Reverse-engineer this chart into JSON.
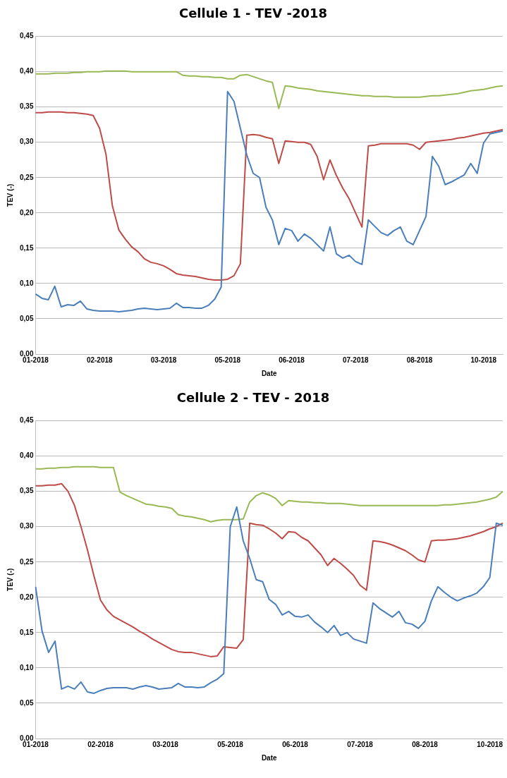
{
  "chart_data": [
    {
      "type": "line",
      "title": "Cellule 1 - TEV -2018",
      "xlabel": "Date",
      "ylabel": "TEV (-)",
      "categories": [
        "01-2018",
        null,
        null,
        null,
        null,
        null,
        null,
        null,
        null,
        null,
        "02-2018",
        null,
        null,
        null,
        null,
        null,
        null,
        null,
        null,
        null,
        "03-2018",
        null,
        null,
        null,
        null,
        null,
        null,
        null,
        null,
        null,
        "05-2018",
        null,
        null,
        null,
        null,
        null,
        null,
        null,
        null,
        null,
        "06-2018",
        null,
        null,
        null,
        null,
        null,
        null,
        null,
        null,
        null,
        "07-2018",
        null,
        null,
        null,
        null,
        null,
        null,
        null,
        null,
        null,
        "08-2018",
        null,
        null,
        null,
        null,
        null,
        null,
        null,
        null,
        null,
        "10-2018",
        null,
        null,
        null
      ],
      "ylim": [
        0,
        0.45
      ],
      "yticks": [
        {
          "value": 0,
          "label": "0,00"
        },
        {
          "value": 0.05,
          "label": "0,05"
        },
        {
          "value": 0.1,
          "label": "0,10"
        },
        {
          "value": 0.15,
          "label": "0,15"
        },
        {
          "value": 0.2,
          "label": "0,20"
        },
        {
          "value": 0.25,
          "label": "0,25"
        },
        {
          "value": 0.3,
          "label": "0,30"
        },
        {
          "value": 0.35,
          "label": "0,35"
        },
        {
          "value": 0.4,
          "label": "0,40"
        },
        {
          "value": 0.45,
          "label": "0,45"
        }
      ],
      "grid": "y",
      "legend": false,
      "marker": "none",
      "line_style": "solid",
      "series": [
        {
          "color": "#4a7ebb",
          "values": [
            0.085,
            0.079,
            0.077,
            0.096,
            0.067,
            0.07,
            0.069,
            0.075,
            0.064,
            0.062,
            0.061,
            0.061,
            0.061,
            0.06,
            0.061,
            0.062,
            0.064,
            0.065,
            0.064,
            0.063,
            0.064,
            0.065,
            0.072,
            0.066,
            0.066,
            0.065,
            0.065,
            0.069,
            0.078,
            0.095,
            0.372,
            0.358,
            0.32,
            0.282,
            0.256,
            0.25,
            0.208,
            0.19,
            0.155,
            0.178,
            0.175,
            0.16,
            0.17,
            0.164,
            0.155,
            0.146,
            0.18,
            0.142,
            0.136,
            0.14,
            0.131,
            0.127,
            0.19,
            0.181,
            0.172,
            0.168,
            0.175,
            0.18,
            0.16,
            0.155,
            0.175,
            0.195,
            0.28,
            0.266,
            0.24,
            0.244,
            0.249,
            0.254,
            0.27,
            0.256,
            0.299,
            0.312,
            0.314,
            0.316
          ]
        },
        {
          "color": "#be4b48",
          "values": [
            0.342,
            0.342,
            0.343,
            0.343,
            0.343,
            0.342,
            0.342,
            0.341,
            0.34,
            0.338,
            0.32,
            0.283,
            0.21,
            0.176,
            0.163,
            0.152,
            0.145,
            0.135,
            0.13,
            0.128,
            0.125,
            0.12,
            0.114,
            0.112,
            0.111,
            0.11,
            0.108,
            0.106,
            0.105,
            0.105,
            0.106,
            0.111,
            0.128,
            0.31,
            0.311,
            0.31,
            0.307,
            0.305,
            0.27,
            0.302,
            0.301,
            0.3,
            0.3,
            0.297,
            0.28,
            0.247,
            0.275,
            0.253,
            0.235,
            0.22,
            0.2,
            0.18,
            0.295,
            0.296,
            0.298,
            0.298,
            0.298,
            0.298,
            0.298,
            0.296,
            0.29,
            0.3,
            0.301,
            0.302,
            0.303,
            0.304,
            0.306,
            0.307,
            0.309,
            0.311,
            0.313,
            0.314,
            0.316,
            0.318
          ]
        },
        {
          "color": "#98b954",
          "values": [
            0.397,
            0.397,
            0.397,
            0.398,
            0.398,
            0.398,
            0.399,
            0.399,
            0.4,
            0.4,
            0.4,
            0.401,
            0.401,
            0.401,
            0.401,
            0.4,
            0.4,
            0.4,
            0.4,
            0.4,
            0.4,
            0.4,
            0.4,
            0.395,
            0.394,
            0.394,
            0.393,
            0.393,
            0.392,
            0.392,
            0.39,
            0.39,
            0.395,
            0.396,
            0.393,
            0.39,
            0.387,
            0.385,
            0.348,
            0.38,
            0.379,
            0.377,
            0.376,
            0.375,
            0.373,
            0.372,
            0.371,
            0.37,
            0.369,
            0.368,
            0.367,
            0.366,
            0.366,
            0.365,
            0.365,
            0.365,
            0.364,
            0.364,
            0.364,
            0.364,
            0.364,
            0.365,
            0.366,
            0.366,
            0.367,
            0.368,
            0.369,
            0.371,
            0.373,
            0.374,
            0.375,
            0.377,
            0.379,
            0.38
          ]
        }
      ]
    },
    {
      "type": "line",
      "title": "Cellule 2 - TEV - 2018",
      "xlabel": "Date",
      "ylabel": "TEV (-)",
      "categories": [
        "01-2018",
        null,
        null,
        null,
        null,
        null,
        null,
        null,
        null,
        null,
        "02-2018",
        null,
        null,
        null,
        null,
        null,
        null,
        null,
        null,
        null,
        "03-2018",
        null,
        null,
        null,
        null,
        null,
        null,
        null,
        null,
        null,
        "05-2018",
        null,
        null,
        null,
        null,
        null,
        null,
        null,
        null,
        null,
        "06-2018",
        null,
        null,
        null,
        null,
        null,
        null,
        null,
        null,
        null,
        "07-2018",
        null,
        null,
        null,
        null,
        null,
        null,
        null,
        null,
        null,
        "08-2018",
        null,
        null,
        null,
        null,
        null,
        null,
        null,
        null,
        null,
        "10-2018",
        null,
        null
      ],
      "ylim": [
        0,
        0.45
      ],
      "yticks": [
        {
          "value": 0,
          "label": "0,00"
        },
        {
          "value": 0.05,
          "label": "0,05"
        },
        {
          "value": 0.1,
          "label": "0,10"
        },
        {
          "value": 0.15,
          "label": "0,15"
        },
        {
          "value": 0.2,
          "label": "0,20"
        },
        {
          "value": 0.25,
          "label": "0,25"
        },
        {
          "value": 0.3,
          "label": "0,30"
        },
        {
          "value": 0.35,
          "label": "0,35"
        },
        {
          "value": 0.4,
          "label": "0,40"
        },
        {
          "value": 0.45,
          "label": "0,45"
        }
      ],
      "grid": "y",
      "legend": false,
      "marker": "none",
      "line_style": "solid",
      "series": [
        {
          "color": "#4a7ebb",
          "values": [
            0.215,
            0.152,
            0.122,
            0.138,
            0.07,
            0.074,
            0.07,
            0.08,
            0.066,
            0.064,
            0.068,
            0.071,
            0.072,
            0.072,
            0.072,
            0.07,
            0.073,
            0.075,
            0.073,
            0.07,
            0.071,
            0.072,
            0.078,
            0.073,
            0.073,
            0.072,
            0.073,
            0.079,
            0.084,
            0.092,
            0.3,
            0.328,
            0.28,
            0.255,
            0.225,
            0.222,
            0.197,
            0.19,
            0.175,
            0.18,
            0.173,
            0.172,
            0.175,
            0.165,
            0.158,
            0.15,
            0.16,
            0.146,
            0.15,
            0.141,
            0.138,
            0.135,
            0.192,
            0.184,
            0.178,
            0.172,
            0.18,
            0.164,
            0.162,
            0.156,
            0.166,
            0.195,
            0.215,
            0.207,
            0.2,
            0.195,
            0.199,
            0.202,
            0.206,
            0.215,
            0.228,
            0.305,
            0.302
          ]
        },
        {
          "color": "#be4b48",
          "values": [
            0.358,
            0.358,
            0.359,
            0.359,
            0.361,
            0.35,
            0.33,
            0.3,
            0.267,
            0.23,
            0.196,
            0.182,
            0.173,
            0.168,
            0.163,
            0.158,
            0.152,
            0.147,
            0.141,
            0.136,
            0.131,
            0.126,
            0.123,
            0.122,
            0.122,
            0.12,
            0.118,
            0.116,
            0.117,
            0.13,
            0.129,
            0.128,
            0.14,
            0.305,
            0.303,
            0.302,
            0.297,
            0.291,
            0.283,
            0.293,
            0.292,
            0.285,
            0.28,
            0.27,
            0.26,
            0.245,
            0.255,
            0.248,
            0.24,
            0.231,
            0.217,
            0.21,
            0.28,
            0.279,
            0.277,
            0.274,
            0.27,
            0.266,
            0.26,
            0.253,
            0.25,
            0.28,
            0.281,
            0.281,
            0.282,
            0.283,
            0.285,
            0.287,
            0.29,
            0.293,
            0.297,
            0.3,
            0.305
          ]
        },
        {
          "color": "#98b954",
          "values": [
            0.382,
            0.382,
            0.383,
            0.383,
            0.384,
            0.384,
            0.385,
            0.385,
            0.385,
            0.385,
            0.384,
            0.384,
            0.384,
            0.349,
            0.344,
            0.34,
            0.336,
            0.332,
            0.331,
            0.329,
            0.328,
            0.326,
            0.317,
            0.315,
            0.314,
            0.312,
            0.31,
            0.307,
            0.309,
            0.31,
            0.31,
            0.31,
            0.311,
            0.335,
            0.344,
            0.348,
            0.345,
            0.34,
            0.33,
            0.337,
            0.336,
            0.335,
            0.335,
            0.334,
            0.334,
            0.333,
            0.333,
            0.333,
            0.332,
            0.331,
            0.33,
            0.33,
            0.33,
            0.33,
            0.33,
            0.33,
            0.33,
            0.33,
            0.33,
            0.33,
            0.33,
            0.33,
            0.33,
            0.331,
            0.331,
            0.332,
            0.333,
            0.334,
            0.335,
            0.337,
            0.339,
            0.342,
            0.35
          ]
        }
      ]
    }
  ]
}
